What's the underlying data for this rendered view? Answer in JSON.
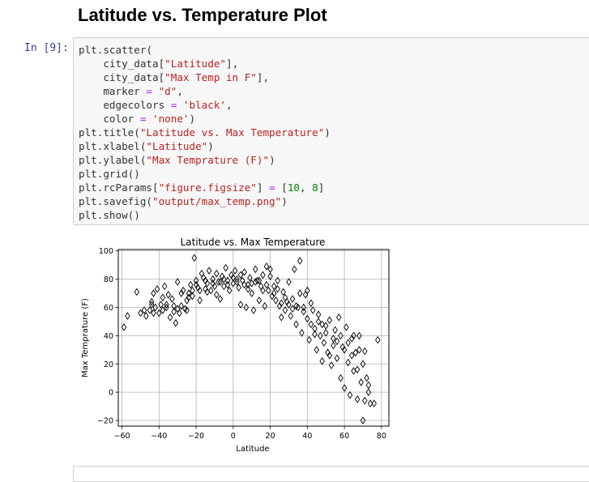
{
  "heading": "Latitude vs. Temperature Plot",
  "cell": {
    "prompt": "In [9]:",
    "lines": [
      [
        {
          "t": "plt.scatter("
        }
      ],
      [
        {
          "t": "    city_data["
        },
        {
          "t": "\"Latitude\"",
          "c": "str"
        },
        {
          "t": "],"
        }
      ],
      [
        {
          "t": "    city_data["
        },
        {
          "t": "\"Max Temp in F\"",
          "c": "str"
        },
        {
          "t": "],"
        }
      ],
      [
        {
          "t": "    marker "
        },
        {
          "t": "=",
          "c": "op"
        },
        {
          "t": " "
        },
        {
          "t": "\"d\"",
          "c": "str"
        },
        {
          "t": ","
        }
      ],
      [
        {
          "t": "    edgecolors "
        },
        {
          "t": "=",
          "c": "op"
        },
        {
          "t": " "
        },
        {
          "t": "'black'",
          "c": "str"
        },
        {
          "t": ","
        }
      ],
      [
        {
          "t": "    color "
        },
        {
          "t": "=",
          "c": "op"
        },
        {
          "t": " "
        },
        {
          "t": "'none'",
          "c": "str"
        },
        {
          "t": ")"
        }
      ],
      [
        {
          "t": "plt.title("
        },
        {
          "t": "\"Latitude vs. Max Temperature\"",
          "c": "str"
        },
        {
          "t": ")"
        }
      ],
      [
        {
          "t": "plt.xlabel("
        },
        {
          "t": "\"Latitude\"",
          "c": "str"
        },
        {
          "t": ")"
        }
      ],
      [
        {
          "t": "plt.ylabel("
        },
        {
          "t": "\"Max Temprature (F)\"",
          "c": "str"
        },
        {
          "t": ")"
        }
      ],
      [
        {
          "t": "plt.grid()"
        }
      ],
      [
        {
          "t": "plt.rcParams["
        },
        {
          "t": "\"figure.figsize\"",
          "c": "str"
        },
        {
          "t": "] "
        },
        {
          "t": "=",
          "c": "op"
        },
        {
          "t": " ["
        },
        {
          "t": "10",
          "c": "num"
        },
        {
          "t": ", "
        },
        {
          "t": "8",
          "c": "num"
        },
        {
          "t": "]"
        }
      ],
      [
        {
          "t": "plt.savefig("
        },
        {
          "t": "\"output/max_temp.png\"",
          "c": "str"
        },
        {
          "t": ")"
        }
      ],
      [
        {
          "t": "plt.show()"
        }
      ]
    ]
  },
  "chart_data": {
    "type": "scatter",
    "title": "Latitude vs. Max Temperature",
    "xlabel": "Latitude",
    "ylabel": "Max Temprature (F)",
    "xlim": [
      -62,
      84
    ],
    "ylim": [
      -24,
      101
    ],
    "xticks": [
      -60,
      -40,
      -20,
      0,
      20,
      40,
      60,
      80
    ],
    "yticks": [
      -20,
      0,
      20,
      40,
      60,
      80,
      100
    ],
    "grid": true,
    "marker": "diamond",
    "marker_edge_color": "#000000",
    "points": [
      [
        -59,
        46
      ],
      [
        -57,
        54
      ],
      [
        -52,
        71
      ],
      [
        -50,
        56
      ],
      [
        -48,
        58
      ],
      [
        -45,
        58
      ],
      [
        -44,
        64
      ],
      [
        -43,
        70
      ],
      [
        -42,
        60
      ],
      [
        -41,
        73
      ],
      [
        -40,
        56
      ],
      [
        -39,
        62
      ],
      [
        -38,
        67
      ],
      [
        -37,
        75
      ],
      [
        -36,
        60
      ],
      [
        -35,
        69
      ],
      [
        -34,
        53
      ],
      [
        -33,
        66
      ],
      [
        -32,
        61
      ],
      [
        -31,
        49
      ],
      [
        -30,
        78
      ],
      [
        -29,
        56
      ],
      [
        -28,
        61
      ],
      [
        -27,
        72
      ],
      [
        -26,
        59
      ],
      [
        -25,
        65
      ],
      [
        -24,
        70
      ],
      [
        -23,
        76
      ],
      [
        -22,
        68
      ],
      [
        -21,
        95
      ],
      [
        -20,
        79
      ],
      [
        -19,
        74
      ],
      [
        -18,
        65
      ],
      [
        -17,
        84
      ],
      [
        -16,
        81
      ],
      [
        -15,
        73
      ],
      [
        -14,
        77
      ],
      [
        -13,
        86
      ],
      [
        -12,
        72
      ],
      [
        -11,
        80
      ],
      [
        -10,
        75
      ],
      [
        -9,
        84
      ],
      [
        -8,
        78
      ],
      [
        -7,
        66
      ],
      [
        -6,
        82
      ],
      [
        -5,
        75
      ],
      [
        -4,
        88
      ],
      [
        -3,
        79
      ],
      [
        -2,
        72
      ],
      [
        -1,
        83
      ],
      [
        0,
        77
      ],
      [
        1,
        86
      ],
      [
        2,
        80
      ],
      [
        3,
        74
      ],
      [
        4,
        62
      ],
      [
        5,
        79
      ],
      [
        6,
        85
      ],
      [
        7,
        60
      ],
      [
        8,
        76
      ],
      [
        9,
        81
      ],
      [
        10,
        70
      ],
      [
        11,
        58
      ],
      [
        12,
        87
      ],
      [
        13,
        79
      ],
      [
        14,
        65
      ],
      [
        15,
        75
      ],
      [
        16,
        83
      ],
      [
        17,
        61
      ],
      [
        18,
        89
      ],
      [
        19,
        72
      ],
      [
        20,
        82
      ],
      [
        21,
        68
      ],
      [
        22,
        75
      ],
      [
        23,
        65
      ],
      [
        24,
        79
      ],
      [
        25,
        61
      ],
      [
        26,
        53
      ],
      [
        27,
        71
      ],
      [
        28,
        58
      ],
      [
        29,
        64
      ],
      [
        30,
        78
      ],
      [
        31,
        54
      ],
      [
        32,
        66
      ],
      [
        33,
        87
      ],
      [
        34,
        48
      ],
      [
        35,
        60
      ],
      [
        36,
        93
      ],
      [
        37,
        42
      ],
      [
        38,
        57
      ],
      [
        39,
        69
      ],
      [
        40,
        52
      ],
      [
        41,
        37
      ],
      [
        42,
        63
      ],
      [
        43,
        58
      ],
      [
        44,
        45
      ],
      [
        45,
        30
      ],
      [
        46,
        55
      ],
      [
        47,
        40
      ],
      [
        48,
        22
      ],
      [
        49,
        35
      ],
      [
        50,
        47
      ],
      [
        51,
        28
      ],
      [
        52,
        51
      ],
      [
        53,
        19
      ],
      [
        54,
        38
      ],
      [
        55,
        44
      ],
      [
        56,
        24
      ],
      [
        57,
        53
      ],
      [
        58,
        10
      ],
      [
        59,
        32
      ],
      [
        60,
        3
      ],
      [
        61,
        46
      ],
      [
        62,
        21
      ],
      [
        63,
        -2
      ],
      [
        64,
        38
      ],
      [
        65,
        15
      ],
      [
        66,
        28
      ],
      [
        67,
        -5
      ],
      [
        68,
        40
      ],
      [
        69,
        7
      ],
      [
        70,
        -20
      ],
      [
        71,
        29
      ],
      [
        72,
        10
      ],
      [
        73,
        0
      ],
      [
        74,
        -8
      ],
      [
        76,
        -8
      ],
      [
        78,
        37
      ],
      [
        -47,
        54
      ],
      [
        -43,
        56
      ],
      [
        -36,
        62
      ],
      [
        -32,
        57
      ],
      [
        -28,
        70
      ],
      [
        -25,
        58
      ],
      [
        -22,
        72
      ],
      [
        -18,
        72
      ],
      [
        -15,
        79
      ],
      [
        -11,
        77
      ],
      [
        -7,
        78
      ],
      [
        -3,
        76
      ],
      [
        2,
        78
      ],
      [
        6,
        76
      ],
      [
        10,
        77
      ],
      [
        14,
        79
      ],
      [
        18,
        76
      ],
      [
        22,
        70
      ],
      [
        26,
        63
      ],
      [
        30,
        62
      ],
      [
        34,
        61
      ],
      [
        38,
        60
      ],
      [
        42,
        48
      ],
      [
        46,
        50
      ],
      [
        50,
        42
      ],
      [
        54,
        33
      ],
      [
        58,
        40
      ],
      [
        62,
        35
      ],
      [
        65,
        40
      ],
      [
        68,
        30
      ],
      [
        71,
        -6
      ],
      [
        73,
        5
      ],
      [
        -44,
        62
      ],
      [
        -38,
        58
      ],
      [
        -30,
        59
      ],
      [
        -24,
        67
      ],
      [
        -20,
        76
      ],
      [
        -14,
        71
      ],
      [
        -9,
        69
      ],
      [
        -5,
        80
      ],
      [
        0,
        81
      ],
      [
        4,
        83
      ],
      [
        8,
        73
      ],
      [
        12,
        78
      ],
      [
        16,
        72
      ],
      [
        20,
        87
      ],
      [
        24,
        73
      ],
      [
        28,
        67
      ],
      [
        32,
        59
      ],
      [
        36,
        70
      ],
      [
        40,
        72
      ],
      [
        44,
        41
      ],
      [
        48,
        48
      ],
      [
        52,
        26
      ],
      [
        56,
        36
      ],
      [
        60,
        30
      ],
      [
        64,
        26
      ],
      [
        67,
        16
      ],
      [
        70,
        20
      ]
    ]
  }
}
